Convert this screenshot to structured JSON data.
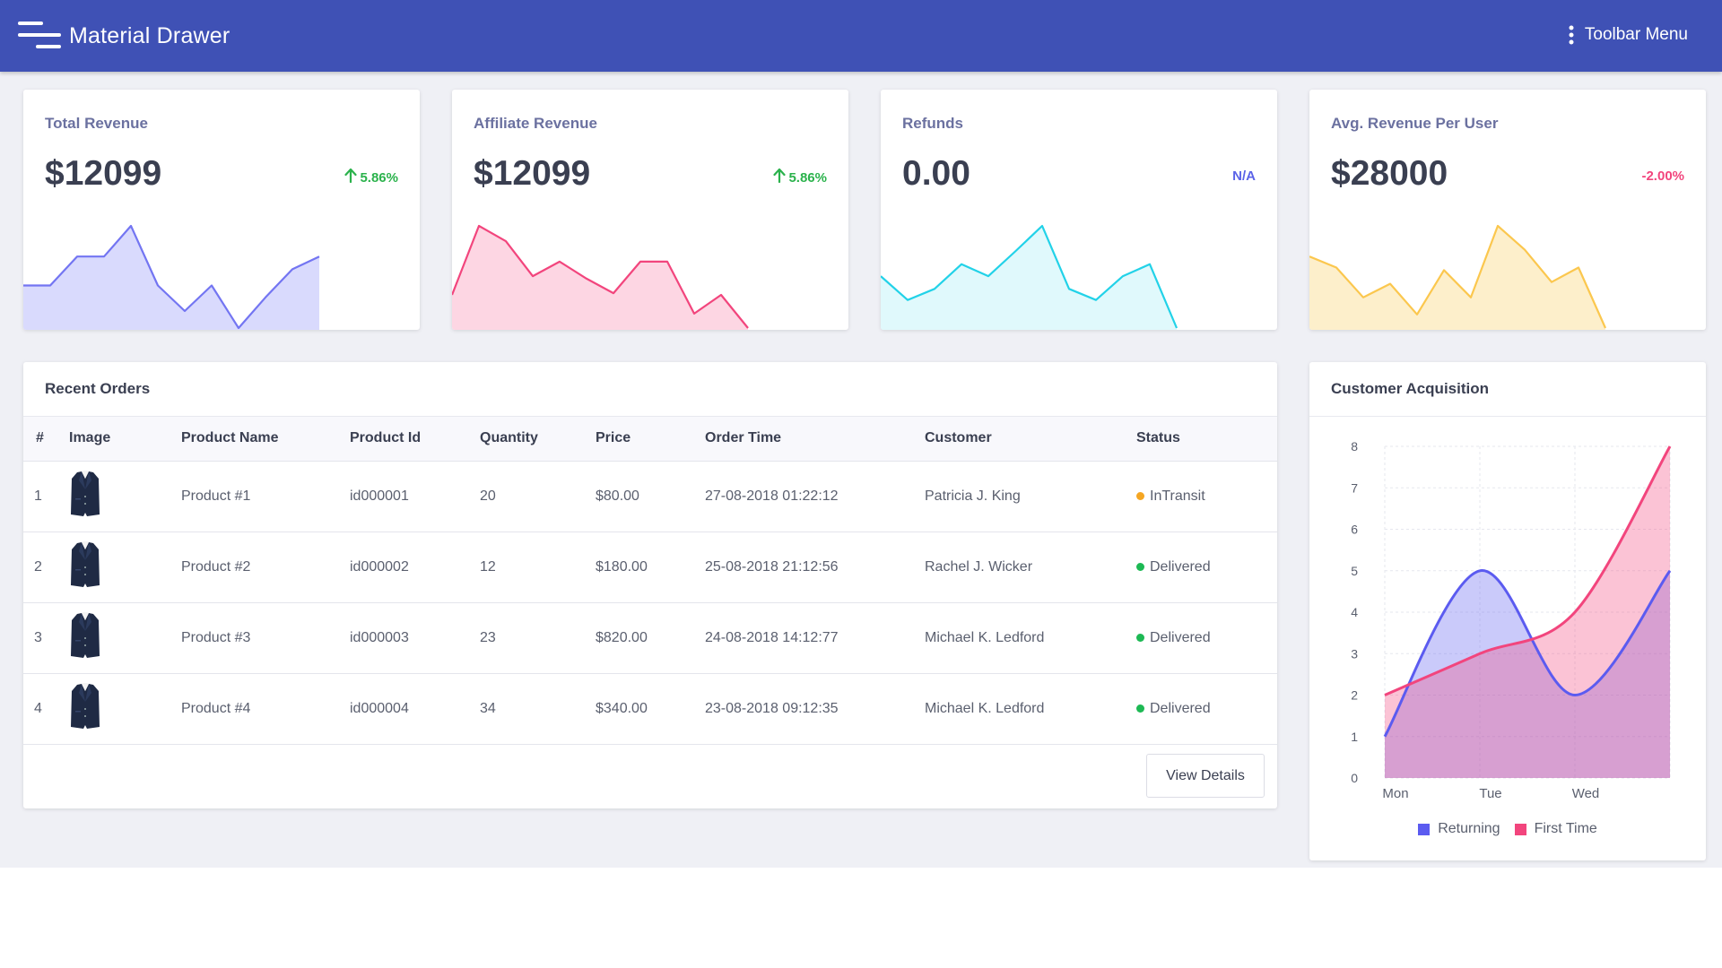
{
  "app": {
    "title": "Material Drawer",
    "toolbar_menu_label": "Toolbar Menu",
    "menu_icon": "hamburger-icon",
    "more_icon": "more-vert-icon"
  },
  "stats": [
    {
      "title": "Total Revenue",
      "value": "$12099",
      "change": "5.86%",
      "trend": "up",
      "color": "#7375f2",
      "fill": "#d9dafd",
      "change_color": "#2bb24c",
      "series": [
        5,
        5,
        8.4,
        8.4,
        12,
        5,
        2,
        5,
        0,
        3.6,
        6.9,
        8.4
      ]
    },
    {
      "title": "Affiliate Revenue",
      "value": "$12099",
      "change": "5.86%",
      "trend": "up",
      "color": "#f2457d",
      "fill": "#fdd6e3",
      "change_color": "#2bb24c",
      "series": [
        3.9,
        12,
        10.2,
        6.1,
        7.8,
        5.8,
        4.1,
        7.8,
        7.8,
        1.7,
        3.9,
        0
      ]
    },
    {
      "title": "Refunds",
      "value": "0.00",
      "change": "N/A",
      "trend": "none",
      "color": "#22d2e8",
      "fill": "#e0f9fc",
      "change_color": "#5b63e8",
      "series": [
        6.1,
        3.3,
        4.6,
        7.5,
        6.1,
        9,
        12,
        4.6,
        3.3,
        6.1,
        7.5,
        0
      ]
    },
    {
      "title": "Avg. Revenue Per User",
      "value": "$28000",
      "change": "-2.00%",
      "trend": "down",
      "color": "#fbc74e",
      "fill": "#fdefcb",
      "change_color": "#f2457d",
      "series": [
        8.4,
        7.1,
        3.6,
        5.2,
        1.6,
        6.8,
        3.6,
        12,
        9.2,
        5.4,
        7.1,
        0
      ]
    }
  ],
  "orders": {
    "title": "Recent Orders",
    "columns": [
      "#",
      "Image",
      "Product Name",
      "Product Id",
      "Quantity",
      "Price",
      "Order Time",
      "Customer",
      "Status"
    ],
    "rows": [
      {
        "num": "1",
        "product": "Product #1",
        "id": "id000001",
        "qty": "20",
        "price": "$80.00",
        "time": "27-08-2018 01:22:12",
        "customer": "Patricia J. King",
        "status": "InTransit",
        "status_color": "#f5a623"
      },
      {
        "num": "2",
        "product": "Product #2",
        "id": "id000002",
        "qty": "12",
        "price": "$180.00",
        "time": "25-08-2018 21:12:56",
        "customer": "Rachel J. Wicker",
        "status": "Delivered",
        "status_color": "#1db954"
      },
      {
        "num": "3",
        "product": "Product #3",
        "id": "id000003",
        "qty": "23",
        "price": "$820.00",
        "time": "24-08-2018 14:12:77",
        "customer": "Michael K. Ledford",
        "status": "Delivered",
        "status_color": "#1db954"
      },
      {
        "num": "4",
        "product": "Product #4",
        "id": "id000004",
        "qty": "34",
        "price": "$340.00",
        "time": "23-08-2018 09:12:35",
        "customer": "Michael K. Ledford",
        "status": "Delivered",
        "status_color": "#1db954"
      }
    ],
    "view_details_label": "View Details",
    "image_icon": "suit-jacket-icon"
  },
  "acquisition": {
    "title": "Customer Acquisition"
  },
  "chart_data": {
    "type": "area",
    "title": "Customer Acquisition",
    "x": [
      "Mon",
      "Tue",
      "Wed",
      ""
    ],
    "ylim": [
      0,
      8
    ],
    "yticks": [
      0,
      1,
      2,
      3,
      4,
      5,
      6,
      7,
      8
    ],
    "grid": true,
    "legend": "bottom",
    "series": [
      {
        "name": "Returning",
        "values": [
          1,
          5,
          2,
          5
        ],
        "color": "#5b5bf0"
      },
      {
        "name": "First Time",
        "values": [
          2,
          3,
          4,
          8
        ],
        "color": "#f2457d"
      }
    ]
  }
}
